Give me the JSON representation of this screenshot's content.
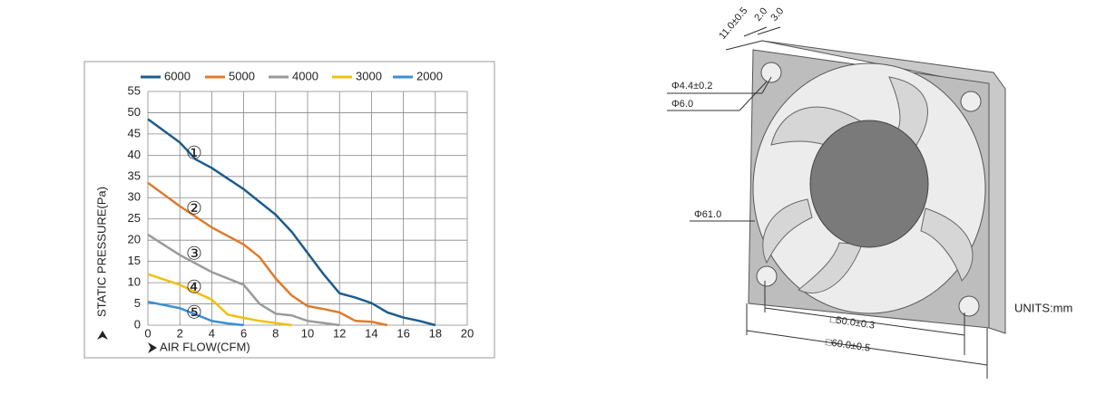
{
  "chart_data": {
    "type": "line",
    "xlabel": "AIR FLOW(CFM)",
    "ylabel": "STATIC PRESSURE(Pa)",
    "xlim": [
      0,
      20
    ],
    "ylim": [
      0,
      55
    ],
    "xticks": [
      0,
      2,
      4,
      6,
      8,
      10,
      12,
      14,
      16,
      18,
      20
    ],
    "yticks": [
      0,
      5,
      10,
      15,
      20,
      25,
      30,
      35,
      40,
      45,
      50,
      55
    ],
    "grid": true,
    "legend": "top",
    "annotations": [
      "①",
      "②",
      "③",
      "④",
      "⑤"
    ],
    "series": [
      {
        "name": "6000",
        "color": "#1b5c8c",
        "x": [
          0,
          2,
          3,
          4,
          5,
          6,
          8,
          9,
          10,
          11,
          12,
          13,
          14,
          15,
          16,
          17,
          18
        ],
        "values": [
          48.5,
          43,
          39,
          37,
          34.5,
          32,
          26,
          22,
          17,
          12,
          7.5,
          6.5,
          5.2,
          3,
          1.8,
          1,
          0
        ]
      },
      {
        "name": "5000",
        "color": "#e07b2a",
        "x": [
          0,
          2,
          4,
          6,
          7,
          8,
          9,
          10,
          11,
          12,
          13,
          14,
          15
        ],
        "values": [
          33.5,
          28,
          23,
          19,
          16,
          11,
          7,
          4.5,
          3.8,
          3,
          1,
          0.8,
          0
        ]
      },
      {
        "name": "4000",
        "color": "#9a9a9a",
        "x": [
          0,
          2,
          4,
          6,
          7,
          8,
          9,
          10,
          11,
          12
        ],
        "values": [
          21.3,
          16.5,
          12.5,
          9.5,
          5,
          2.7,
          2.3,
          1,
          0.5,
          0
        ]
      },
      {
        "name": "3000",
        "color": "#f2c010",
        "x": [
          0,
          2,
          4,
          5,
          6,
          7,
          8,
          9
        ],
        "values": [
          12,
          9.5,
          6,
          2.5,
          1.7,
          1,
          0.5,
          0
        ]
      },
      {
        "name": "2000",
        "color": "#3a8fd4",
        "x": [
          0,
          2,
          3,
          4,
          5,
          6
        ],
        "values": [
          5.5,
          4,
          2.5,
          1,
          0.4,
          0
        ]
      }
    ]
  },
  "drawing": {
    "dimensions": [
      "11.0±0.5",
      "2.0",
      "3.0",
      "Φ4.4±0.2",
      "Φ6.0",
      "Φ61.0",
      "□50.0±0.3",
      "□60.0±0.5"
    ],
    "units": "UNITS:mm"
  }
}
